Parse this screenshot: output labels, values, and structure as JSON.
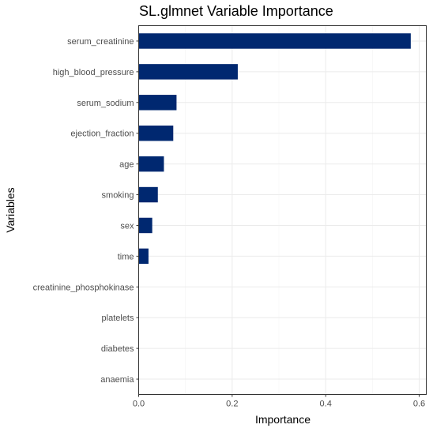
{
  "chart_data": {
    "type": "bar",
    "orientation": "horizontal",
    "title": "SL.glmnet Variable Importance",
    "xlabel": "Importance",
    "ylabel": "Variables",
    "categories": [
      "serum_creatinine",
      "high_blood_pressure",
      "serum_sodium",
      "ejection_fraction",
      "age",
      "smoking",
      "sex",
      "time",
      "creatinine_phosphokinase",
      "platelets",
      "diabetes",
      "anaemia"
    ],
    "values": [
      0.582,
      0.212,
      0.081,
      0.074,
      0.054,
      0.041,
      0.029,
      0.021,
      0.0,
      0.0,
      0.0,
      0.0
    ],
    "xlim": [
      0,
      0.6
    ],
    "xticks": [
      0.0,
      0.2,
      0.4,
      0.6
    ],
    "xtick_labels": [
      "0.0",
      "0.2",
      "0.4",
      "0.6"
    ],
    "grid": true,
    "bar_color": "#002870"
  }
}
